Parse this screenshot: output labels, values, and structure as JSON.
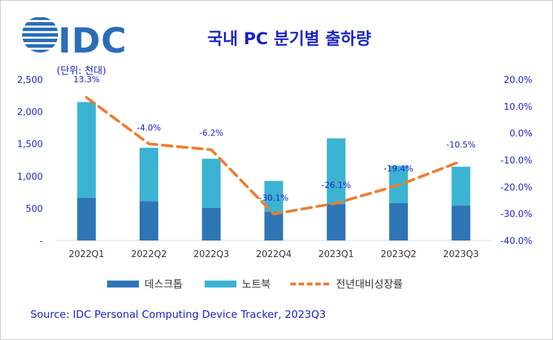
{
  "header": {
    "logo_text": "IDC",
    "title": "국내 PC 분기별 출하량",
    "unit": "(단위: 천대)"
  },
  "source": "Source: IDC Personal Computing Device Tracker, 2023Q3",
  "colors": {
    "desktop": "#2e75b6",
    "notebook": "#3bb3d3",
    "growth": "#ed7d31",
    "axis_text": "#1b24c8",
    "logo": "#2a6eb8"
  },
  "chart_data": {
    "type": "bar",
    "stacked": true,
    "title": "국내 PC 분기별 출하량",
    "ylabel": "(단위: 천대)",
    "categories": [
      "2022Q1",
      "2022Q2",
      "2022Q3",
      "2022Q4",
      "2023Q1",
      "2023Q2",
      "2023Q3"
    ],
    "series": [
      {
        "name": "데스크톱",
        "values": [
          660,
          610,
          505,
          445,
          565,
          580,
          545
        ]
      },
      {
        "name": "노트북",
        "values": [
          1490,
          830,
          765,
          480,
          1020,
          580,
          600
        ]
      }
    ],
    "line_series": {
      "name": "전년대비성장률",
      "values": [
        13.3,
        -4.0,
        -6.2,
        -30.1,
        -26.1,
        -19.4,
        -10.5
      ],
      "labels": [
        "13.3%",
        "-4.0%",
        "-6.2%",
        "-30.1%",
        "-26.1%",
        "-19.4%",
        "-10.5%"
      ],
      "axis": "right"
    },
    "ylim": [
      0,
      2500
    ],
    "y_ticks": [
      0,
      500,
      1000,
      1500,
      2000,
      2500
    ],
    "y_tick_labels": [
      "-",
      "500",
      "1,000",
      "1,500",
      "2,000",
      "2,500"
    ],
    "y2lim": [
      -40,
      20
    ],
    "y2_ticks": [
      -40,
      -30,
      -20,
      -10,
      0,
      10,
      20
    ],
    "y2_tick_labels": [
      "-40.0%",
      "-30.0%",
      "-20.0%",
      "-10.0%",
      "0.0%",
      "10.0%",
      "20.0%"
    ],
    "legend": [
      "데스크톱",
      "노트북",
      "전년대비성장률"
    ],
    "legend_position": "bottom"
  }
}
